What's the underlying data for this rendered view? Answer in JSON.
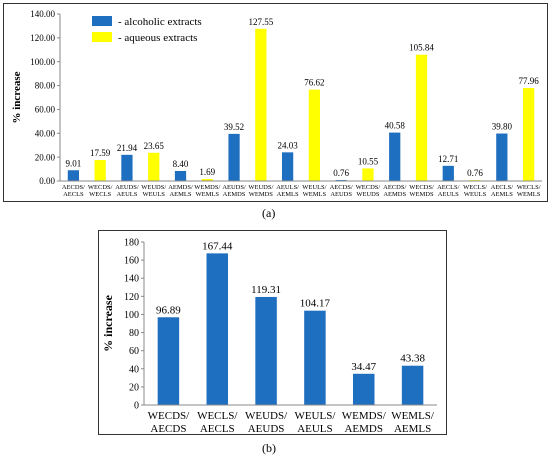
{
  "colors": {
    "alcoholic": "#1f6fc0",
    "aqueous": "#ffff00",
    "axis": "#888888"
  },
  "panel_labels": {
    "a": "(a)",
    "b": "(b)"
  },
  "chart_data": [
    {
      "type": "bar",
      "ylabel": "% increase",
      "ylim": [
        0,
        140
      ],
      "yticks": [
        "0.00",
        "20.00",
        "40.00",
        "60.00",
        "80.00",
        "100.00",
        "120.00",
        "140.00"
      ],
      "legend_position": "top-left",
      "legend": [
        {
          "label": "- alcoholic extracts",
          "color": "#1f6fc0"
        },
        {
          "label": "- aqueous extracts",
          "color": "#ffff00"
        }
      ],
      "categories": [
        {
          "line1": "AECDS/",
          "line2": "AECLS",
          "value": 9.01,
          "label": "9.01",
          "kind": "alcoholic"
        },
        {
          "line1": "WECDS/",
          "line2": "WECLS",
          "value": 17.59,
          "label": "17.59",
          "kind": "aqueous"
        },
        {
          "line1": "AEUDS/",
          "line2": "AEULS",
          "value": 21.94,
          "label": "21.94",
          "kind": "alcoholic"
        },
        {
          "line1": "WEUDS/",
          "line2": "WEULS",
          "value": 23.65,
          "label": "23.65",
          "kind": "aqueous"
        },
        {
          "line1": "AEMDS/",
          "line2": "AEMLS",
          "value": 8.4,
          "label": "8.40",
          "kind": "alcoholic"
        },
        {
          "line1": "WEMDS/",
          "line2": "WEMLS",
          "value": 1.69,
          "label": "1.69",
          "kind": "aqueous"
        },
        {
          "line1": "AEUDS/",
          "line2": "AEMDS",
          "value": 39.52,
          "label": "39.52",
          "kind": "alcoholic"
        },
        {
          "line1": "WEUDS/",
          "line2": "WEMDS",
          "value": 127.55,
          "label": "127.55",
          "kind": "aqueous"
        },
        {
          "line1": "AEULS/",
          "line2": "AEMLS",
          "value": 24.03,
          "label": "24.03",
          "kind": "alcoholic"
        },
        {
          "line1": "WEULS/",
          "line2": "WEMLS",
          "value": 76.62,
          "label": "76.62",
          "kind": "aqueous"
        },
        {
          "line1": "AECDS/",
          "line2": "AEUDS",
          "value": 0.76,
          "label": "0.76",
          "kind": "alcoholic"
        },
        {
          "line1": "WECDS/",
          "line2": "WEUDS",
          "value": 10.55,
          "label": "10.55",
          "kind": "aqueous"
        },
        {
          "line1": "AECDS/",
          "line2": "AEMDS",
          "value": 40.58,
          "label": "40.58",
          "kind": "alcoholic"
        },
        {
          "line1": "WECDS/",
          "line2": "WEMDS",
          "value": 105.84,
          "label": "105.84",
          "kind": "aqueous"
        },
        {
          "line1": "AECLS/",
          "line2": "AEULS",
          "value": 12.71,
          "label": "12.71",
          "kind": "alcoholic"
        },
        {
          "line1": "WECLS/",
          "line2": "WEULS",
          "value": 0.76,
          "label": "0.76",
          "kind": "aqueous"
        },
        {
          "line1": "AECLS/",
          "line2": "AEMLS",
          "value": 39.8,
          "label": "39.80",
          "kind": "alcoholic"
        },
        {
          "line1": "WECLS/",
          "line2": "WEMLS",
          "value": 77.96,
          "label": "77.96",
          "kind": "aqueous"
        }
      ]
    },
    {
      "type": "bar",
      "ylabel": "% increase",
      "ylim": [
        0,
        180
      ],
      "yticks": [
        "0",
        "20",
        "40",
        "60",
        "80",
        "100",
        "120",
        "140",
        "160",
        "180"
      ],
      "categories": [
        {
          "line1": "WECDS/",
          "line2": "AECDS",
          "value": 96.89,
          "label": "96.89",
          "kind": "alcoholic"
        },
        {
          "line1": "WECLS/",
          "line2": "AECLS",
          "value": 167.44,
          "label": "167.44",
          "kind": "alcoholic"
        },
        {
          "line1": "WEUDS/",
          "line2": "AEUDS",
          "value": 119.31,
          "label": "119.31",
          "kind": "alcoholic"
        },
        {
          "line1": "WEULS/",
          "line2": "AEULS",
          "value": 104.17,
          "label": "104.17",
          "kind": "alcoholic"
        },
        {
          "line1": "WEMDS/",
          "line2": "AEMDS",
          "value": 34.47,
          "label": "34.47",
          "kind": "alcoholic"
        },
        {
          "line1": "WEMLS/",
          "line2": "AEMLS",
          "value": 43.38,
          "label": "43.38",
          "kind": "alcoholic"
        }
      ]
    }
  ]
}
